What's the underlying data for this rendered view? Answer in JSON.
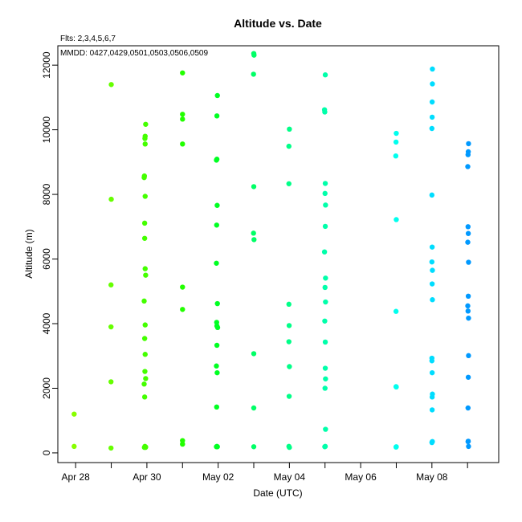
{
  "chart_data": {
    "type": "scatter",
    "title": "Altitude  vs. Date",
    "annotations": [
      "Flts: 2,3,4,5,6,7",
      "MMDD: 0427,0429,0501,0503,0506,0509"
    ],
    "xlabel": "Date (UTC)",
    "ylabel": "Altitude (m)",
    "x_unit": "days (UTC)",
    "xlim": [
      "2019-04-27T12:00",
      "2019-05-09T21:00"
    ],
    "ylim": [
      -300,
      12600
    ],
    "x_ticks": [
      {
        "value": "2019-04-28",
        "label": "Apr 28"
      },
      {
        "value": "2019-04-29",
        "label": ""
      },
      {
        "value": "2019-04-30",
        "label": "Apr 30"
      },
      {
        "value": "2019-05-01",
        "label": ""
      },
      {
        "value": "2019-05-02",
        "label": "May 02"
      },
      {
        "value": "2019-05-03",
        "label": ""
      },
      {
        "value": "2019-05-04",
        "label": "May 04"
      },
      {
        "value": "2019-05-05",
        "label": ""
      },
      {
        "value": "2019-05-06",
        "label": "May 06"
      },
      {
        "value": "2019-05-07",
        "label": ""
      },
      {
        "value": "2019-05-08",
        "label": "May 08"
      },
      {
        "value": "2019-05-09",
        "label": ""
      }
    ],
    "y_ticks": [
      {
        "value": 0,
        "label": "0"
      },
      {
        "value": 2000,
        "label": "2000"
      },
      {
        "value": 4000,
        "label": "4000"
      },
      {
        "value": 6000,
        "label": "6000"
      },
      {
        "value": 8000,
        "label": "8000"
      },
      {
        "value": 10000,
        "label": "10000"
      },
      {
        "value": 12000,
        "label": "12000"
      }
    ],
    "grid": false,
    "legend": "none",
    "colors": [
      "#88ff00",
      "#44ff00",
      "#00ff00",
      "#00ff66",
      "#00ffaa",
      "#00ffdd",
      "#00ddff",
      "#0099ff"
    ],
    "series": [
      {
        "color": "#88ff00",
        "points": [
          [
            "2019-04-27T23:00",
            1200
          ],
          [
            "2019-04-27T23:00",
            200
          ]
        ]
      },
      {
        "color": "#66ff00",
        "points": [
          [
            "2019-04-29T00:00",
            11400
          ],
          [
            "2019-04-29T00:00",
            7850
          ],
          [
            "2019-04-28T23:50",
            5200
          ],
          [
            "2019-04-28T23:50",
            3900
          ],
          [
            "2019-04-28T23:50",
            2200
          ],
          [
            "2019-04-28T23:50",
            150
          ]
        ]
      },
      {
        "color": "#44ff00",
        "points": [
          [
            "2019-04-29T23:10",
            10170
          ],
          [
            "2019-04-29T22:50",
            9800
          ],
          [
            "2019-04-29T22:40",
            9730
          ],
          [
            "2019-04-29T22:50",
            9560
          ],
          [
            "2019-04-29T22:20",
            8570
          ],
          [
            "2019-04-29T22:10",
            8520
          ],
          [
            "2019-04-29T22:50",
            7940
          ],
          [
            "2019-04-29T22:30",
            7110
          ],
          [
            "2019-04-29T22:30",
            6640
          ],
          [
            "2019-04-29T22:50",
            5700
          ],
          [
            "2019-04-29T23:10",
            5500
          ],
          [
            "2019-04-29T22:10",
            4700
          ],
          [
            "2019-04-29T22:50",
            3960
          ],
          [
            "2019-04-29T22:30",
            3540
          ],
          [
            "2019-04-29T22:50",
            3050
          ],
          [
            "2019-04-29T22:40",
            2520
          ],
          [
            "2019-04-29T23:10",
            2300
          ],
          [
            "2019-04-29T22:10",
            2130
          ],
          [
            "2019-04-29T22:30",
            1730
          ],
          [
            "2019-04-29T22:20",
            170
          ],
          [
            "2019-04-29T22:40",
            200
          ],
          [
            "2019-04-29T23:00",
            170
          ],
          [
            "2019-04-29T23:10",
            180
          ]
        ]
      },
      {
        "color": "#22ff00",
        "points": [
          [
            "2019-05-01T00:00",
            11760
          ],
          [
            "2019-05-01T00:00",
            10480
          ],
          [
            "2019-05-01T00:00",
            10330
          ],
          [
            "2019-05-01T00:00",
            9560
          ],
          [
            "2019-05-01T00:00",
            5130
          ],
          [
            "2019-05-01T00:00",
            4440
          ],
          [
            "2019-05-01T00:00",
            380
          ],
          [
            "2019-05-01T00:00",
            270
          ]
        ]
      },
      {
        "color": "#00ff22",
        "points": [
          [
            "2019-05-01T23:30",
            11060
          ],
          [
            "2019-05-01T23:10",
            10430
          ],
          [
            "2019-05-01T22:50",
            9060
          ],
          [
            "2019-05-01T23:10",
            9090
          ],
          [
            "2019-05-01T23:20",
            7660
          ],
          [
            "2019-05-01T23:00",
            7050
          ],
          [
            "2019-05-01T22:50",
            5870
          ],
          [
            "2019-05-01T23:30",
            4620
          ],
          [
            "2019-05-01T23:00",
            4040
          ],
          [
            "2019-05-01T23:10",
            3930
          ],
          [
            "2019-05-01T23:40",
            3880
          ],
          [
            "2019-05-01T23:10",
            3330
          ],
          [
            "2019-05-01T22:50",
            2690
          ],
          [
            "2019-05-01T23:20",
            2480
          ],
          [
            "2019-05-01T23:00",
            1420
          ],
          [
            "2019-05-01T22:50",
            190
          ],
          [
            "2019-05-01T23:10",
            200
          ],
          [
            "2019-05-01T23:30",
            190
          ]
        ]
      },
      {
        "color": "#00ff66",
        "points": [
          [
            "2019-05-03T00:00",
            12360
          ],
          [
            "2019-05-03T00:10",
            12310
          ],
          [
            "2019-05-02T23:50",
            11720
          ],
          [
            "2019-05-03T00:00",
            8240
          ],
          [
            "2019-05-02T23:50",
            6800
          ],
          [
            "2019-05-03T00:10",
            6600
          ],
          [
            "2019-05-03T00:00",
            3070
          ],
          [
            "2019-05-03T00:00",
            1390
          ],
          [
            "2019-05-03T00:00",
            190
          ]
        ]
      },
      {
        "color": "#00ff88",
        "points": [
          [
            "2019-05-04T00:00",
            10020
          ],
          [
            "2019-05-03T23:40",
            9490
          ],
          [
            "2019-05-03T23:40",
            8330
          ],
          [
            "2019-05-03T23:40",
            4600
          ],
          [
            "2019-05-03T23:50",
            3940
          ],
          [
            "2019-05-03T23:40",
            3440
          ],
          [
            "2019-05-04T00:00",
            2670
          ],
          [
            "2019-05-03T23:50",
            1750
          ],
          [
            "2019-05-03T23:40",
            200
          ],
          [
            "2019-05-04T00:00",
            170
          ]
        ]
      },
      {
        "color": "#00ffaa",
        "points": [
          [
            "2019-05-05T00:10",
            11700
          ],
          [
            "2019-05-04T23:40",
            10620
          ],
          [
            "2019-05-04T23:50",
            10550
          ],
          [
            "2019-05-05T00:10",
            8340
          ],
          [
            "2019-05-05T00:00",
            8030
          ],
          [
            "2019-05-05T00:20",
            7670
          ],
          [
            "2019-05-05T00:10",
            7010
          ],
          [
            "2019-05-04T23:40",
            6220
          ],
          [
            "2019-05-05T00:20",
            5410
          ],
          [
            "2019-05-05T00:00",
            5120
          ],
          [
            "2019-05-05T00:20",
            4670
          ],
          [
            "2019-05-04T23:50",
            4080
          ],
          [
            "2019-05-05T00:10",
            3430
          ],
          [
            "2019-05-05T00:10",
            2620
          ],
          [
            "2019-05-05T00:20",
            2290
          ],
          [
            "2019-05-05T00:00",
            2000
          ],
          [
            "2019-05-05T00:20",
            730
          ],
          [
            "2019-05-04T23:50",
            190
          ],
          [
            "2019-05-05T00:10",
            200
          ]
        ]
      },
      {
        "color": "#00ffee",
        "points": [
          [
            "2019-05-07T00:00",
            9890
          ],
          [
            "2019-05-06T23:50",
            9620
          ],
          [
            "2019-05-06T23:40",
            9190
          ],
          [
            "2019-05-07T00:00",
            7220
          ],
          [
            "2019-05-06T23:50",
            4380
          ],
          [
            "2019-05-06T23:50",
            2050
          ],
          [
            "2019-05-07T00:00",
            2040
          ],
          [
            "2019-05-06T23:50",
            180
          ],
          [
            "2019-05-07T00:00",
            190
          ]
        ]
      },
      {
        "color": "#00ddff",
        "points": [
          [
            "2019-05-08T00:20",
            11880
          ],
          [
            "2019-05-08T00:20",
            11420
          ],
          [
            "2019-05-08T00:10",
            10860
          ],
          [
            "2019-05-08T00:10",
            10390
          ],
          [
            "2019-05-08T00:00",
            10040
          ],
          [
            "2019-05-08T00:00",
            7980
          ],
          [
            "2019-05-08T00:10",
            6370
          ],
          [
            "2019-05-08T00:00",
            5910
          ],
          [
            "2019-05-08T00:20",
            5650
          ],
          [
            "2019-05-08T00:10",
            5230
          ],
          [
            "2019-05-08T00:20",
            4740
          ],
          [
            "2019-05-08T00:00",
            2930
          ],
          [
            "2019-05-08T00:00",
            2850
          ],
          [
            "2019-05-08T00:10",
            2480
          ],
          [
            "2019-05-08T00:20",
            1820
          ],
          [
            "2019-05-08T00:10",
            1730
          ],
          [
            "2019-05-08T00:10",
            1330
          ],
          [
            "2019-05-08T00:00",
            320
          ],
          [
            "2019-05-08T00:10",
            340
          ],
          [
            "2019-05-08T00:20",
            350
          ]
        ]
      },
      {
        "color": "#0099ff",
        "points": [
          [
            "2019-05-09T00:40",
            9570
          ],
          [
            "2019-05-09T00:30",
            9320
          ],
          [
            "2019-05-09T00:20",
            9230
          ],
          [
            "2019-05-09T00:10",
            8860
          ],
          [
            "2019-05-09T00:20",
            7000
          ],
          [
            "2019-05-09T00:30",
            6790
          ],
          [
            "2019-05-09T00:10",
            6520
          ],
          [
            "2019-05-09T00:40",
            5900
          ],
          [
            "2019-05-09T00:30",
            4850
          ],
          [
            "2019-05-09T00:10",
            4550
          ],
          [
            "2019-05-09T00:20",
            4390
          ],
          [
            "2019-05-09T00:40",
            4170
          ],
          [
            "2019-05-09T00:40",
            3010
          ],
          [
            "2019-05-09T00:30",
            2340
          ],
          [
            "2019-05-09T00:20",
            1390
          ],
          [
            "2019-05-09T00:20",
            350
          ],
          [
            "2019-05-09T00:30",
            360
          ],
          [
            "2019-05-09T00:40",
            200
          ]
        ]
      }
    ]
  }
}
